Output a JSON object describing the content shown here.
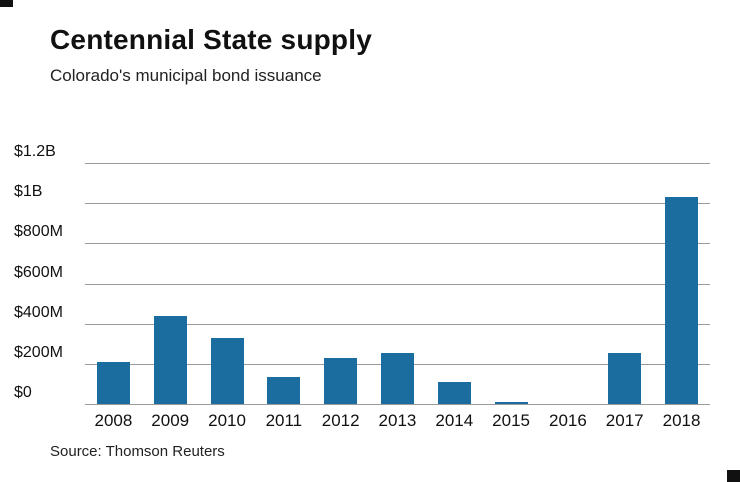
{
  "header": {
    "title": "Centennial State supply",
    "subtitle": "Colorado's municipal bond issuance"
  },
  "footer": {
    "source": "Source: Thomson Reuters"
  },
  "chart_data": {
    "type": "bar",
    "title": "Centennial State supply",
    "subtitle": "Colorado's municipal bond issuance",
    "categories": [
      "2008",
      "2009",
      "2010",
      "2011",
      "2012",
      "2013",
      "2014",
      "2015",
      "2016",
      "2017",
      "2018"
    ],
    "values": [
      210,
      440,
      330,
      135,
      230,
      255,
      110,
      10,
      0,
      255,
      1030
    ],
    "unit": "USD millions",
    "xlabel": "",
    "ylabel": "",
    "ylim": [
      0,
      1200
    ],
    "yticks": [
      {
        "value": 1200,
        "label": "$1.2B"
      },
      {
        "value": 1000,
        "label": "$1B"
      },
      {
        "value": 800,
        "label": "$800M"
      },
      {
        "value": 600,
        "label": "$600M"
      },
      {
        "value": 400,
        "label": "$400M"
      },
      {
        "value": 200,
        "label": "$200M"
      },
      {
        "value": 0,
        "label": "$0"
      }
    ],
    "grid": true,
    "legend": "none",
    "bar_color": "#1a6d9e",
    "gridline_color": "#9a9a9a"
  }
}
